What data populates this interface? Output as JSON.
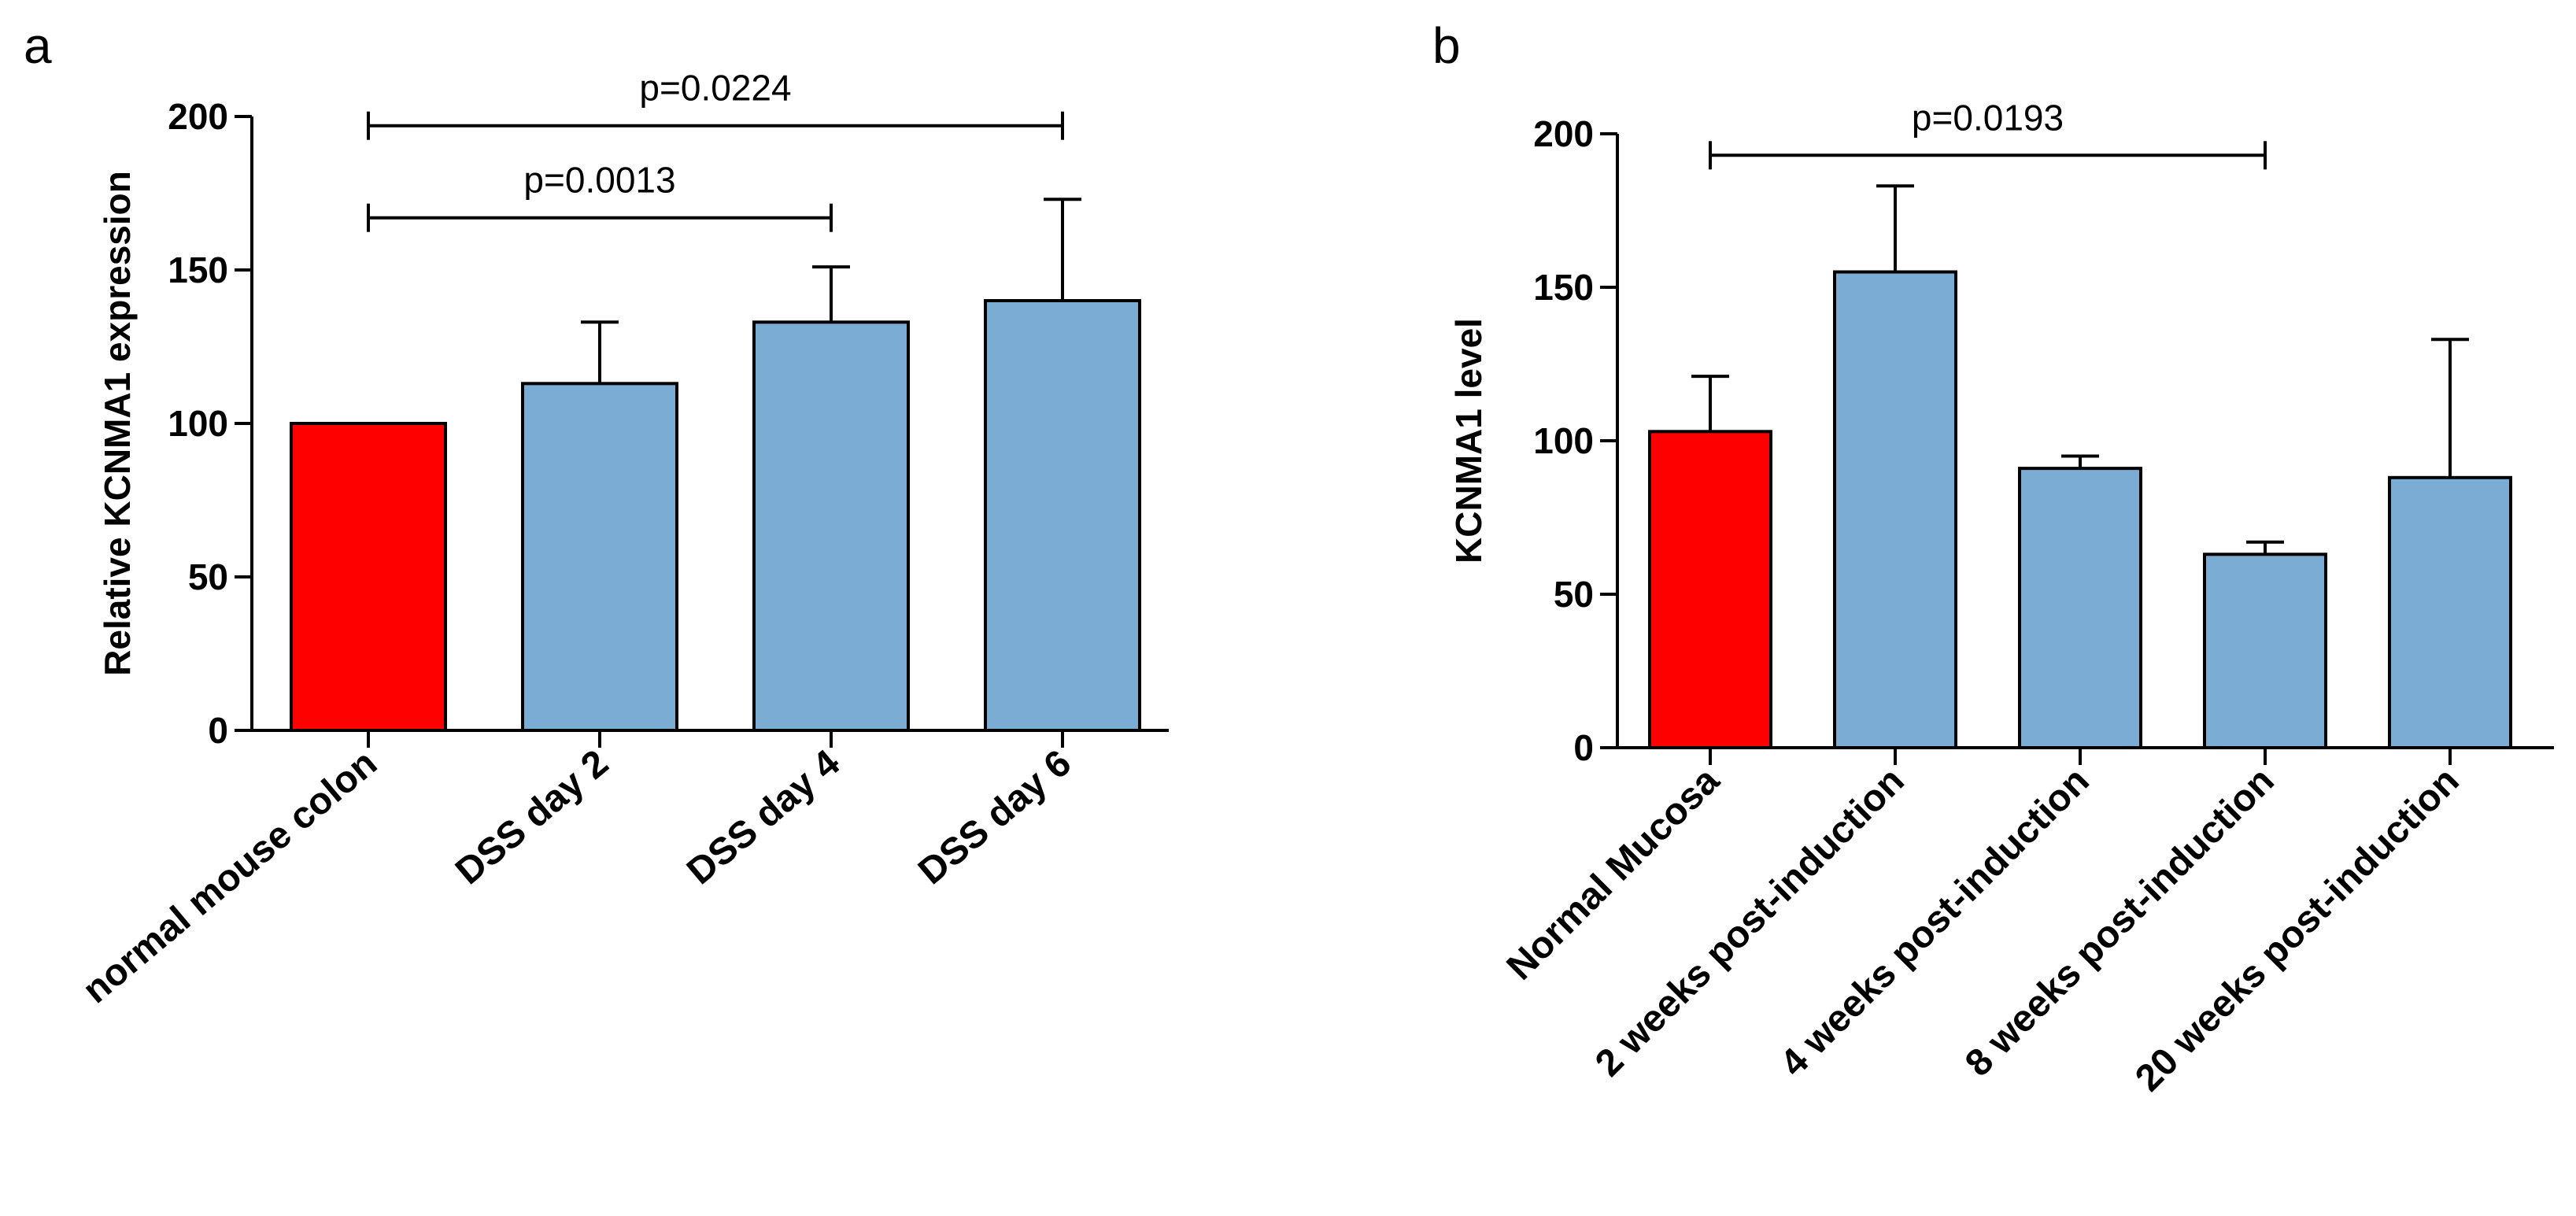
{
  "panels": {
    "a": {
      "letter": "a"
    },
    "b": {
      "letter": "b"
    }
  },
  "chart_data": [
    {
      "panel": "a",
      "type": "bar",
      "title": "",
      "xlabel": "",
      "ylabel": "Relative KCNMA1 expression",
      "ylim": [
        0,
        200
      ],
      "yticks": [
        0,
        50,
        100,
        150,
        200
      ],
      "grid": false,
      "categories": [
        "normal mouse colon",
        "DSS day 2",
        "DSS day 4",
        "DSS day 6"
      ],
      "values": [
        100,
        113,
        133,
        140
      ],
      "errors": [
        0,
        20,
        18,
        33
      ],
      "colors": [
        "#ff0000",
        "#7bacd4",
        "#7bacd4",
        "#7bacd4"
      ],
      "significance": [
        {
          "from": 0,
          "to": 2,
          "label": "p=0.0013",
          "y": 167
        },
        {
          "from": 0,
          "to": 3,
          "label": "p=0.0224",
          "y": 197
        }
      ]
    },
    {
      "panel": "b",
      "type": "bar",
      "title": "",
      "xlabel": "",
      "ylabel": "KCNMA1 level",
      "ylim": [
        0,
        200
      ],
      "yticks": [
        0,
        50,
        100,
        150,
        200
      ],
      "grid": false,
      "categories": [
        "Normal Mucosa",
        "2 weeks post-induction",
        "4 weeks post-induction",
        "8 weeks post-induction",
        "20 weeks post-induction"
      ],
      "values": [
        103,
        155,
        91,
        63,
        88
      ],
      "errors": [
        18,
        28,
        4,
        4,
        45
      ],
      "colors": [
        "#ff0000",
        "#7bacd4",
        "#7bacd4",
        "#7bacd4",
        "#7bacd4"
      ],
      "significance": [
        {
          "from": 0,
          "to": 3,
          "label": "p=0.0193",
          "y": 193
        }
      ]
    }
  ]
}
